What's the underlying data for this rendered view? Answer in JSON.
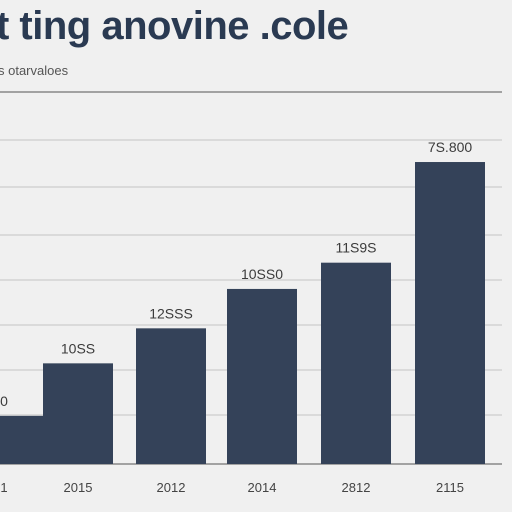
{
  "chart_data": {
    "type": "bar",
    "title": "t ting anovine .cole",
    "subtitle": "s otarvaloes",
    "categories": [
      "1",
      "2015",
      "2012",
      "2014",
      "2812",
      "2115"
    ],
    "values": [
      1.1,
      2.3,
      3.1,
      4.0,
      4.6,
      6.9
    ],
    "data_labels": [
      "0",
      "10SS",
      "12SSS",
      "10SS0",
      "11S9S",
      "7S.800"
    ],
    "ylim": [
      0,
      8.5
    ],
    "grid": true,
    "colors": {
      "bar": "#344259",
      "grid": "#c4c4c4",
      "axis": "#888888",
      "background": "#f0f0f0"
    }
  }
}
